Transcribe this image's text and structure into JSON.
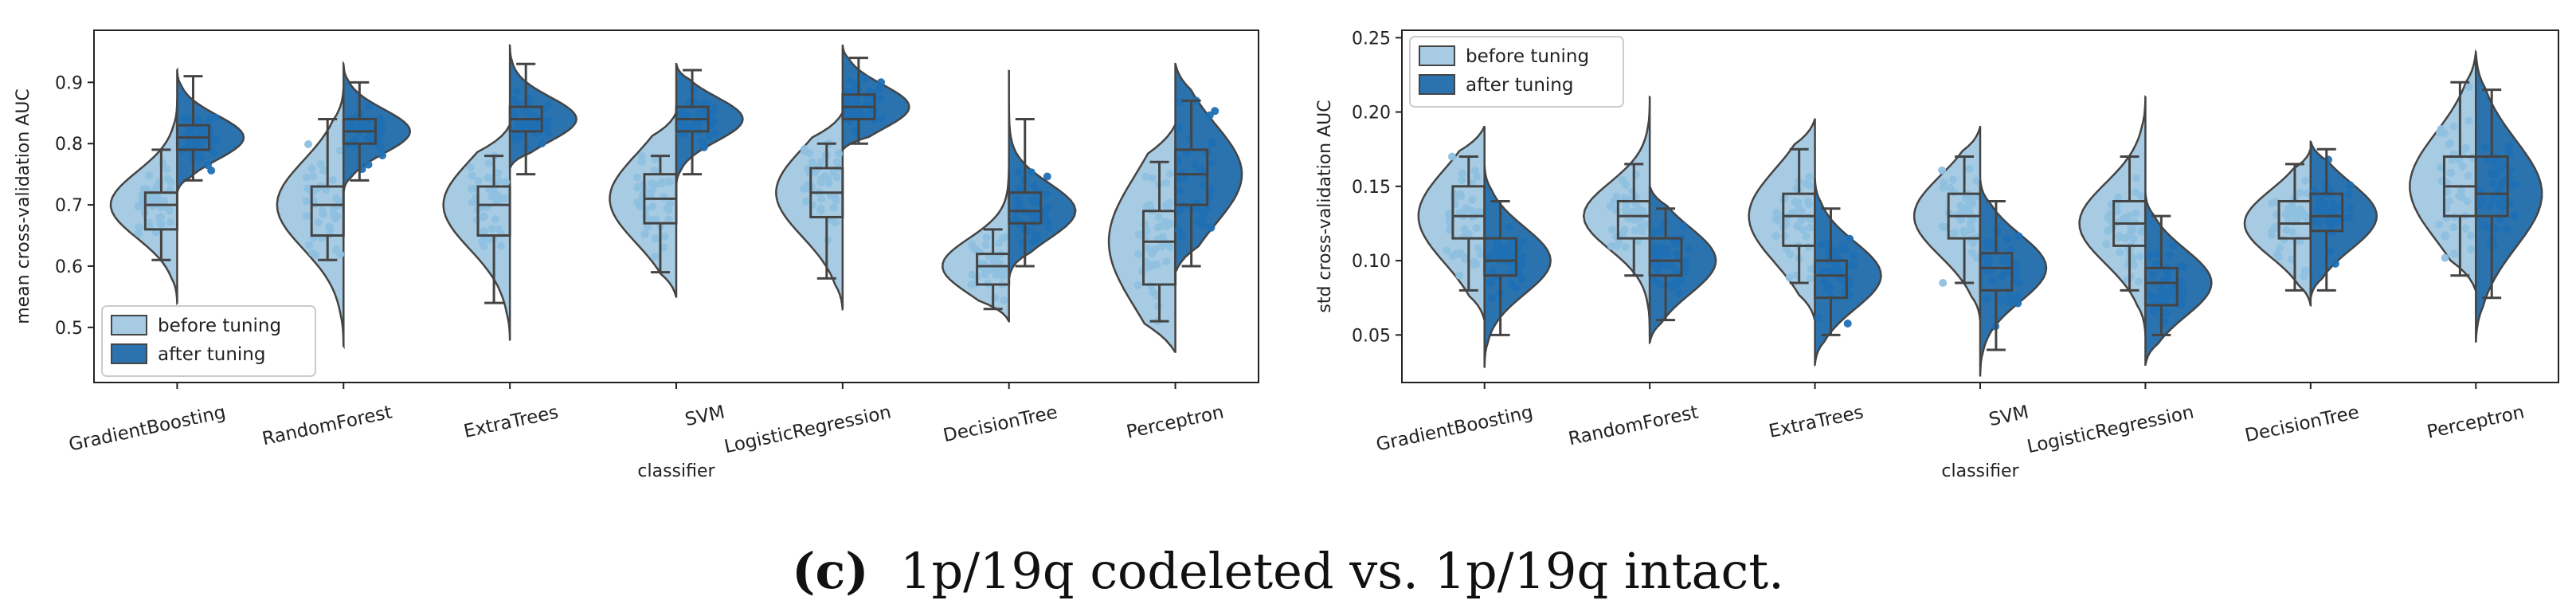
{
  "colors": {
    "before": "#a6cbe3",
    "after": "#2a73ae",
    "before_dot": "#8fc0df",
    "after_dot": "#1f6fb4",
    "line": "#444444"
  },
  "chart_data": [
    {
      "type": "split-violin",
      "xlabel": "classifier",
      "ylabel": "mean cross-validation AUC",
      "ylim": [
        0.41,
        0.985
      ],
      "yticks": [
        "0.5",
        "0.6",
        "0.7",
        "0.8",
        "0.9"
      ],
      "ytick_values": [
        0.5,
        0.6,
        0.7,
        0.8,
        0.9
      ],
      "legend": {
        "position": "lower-left",
        "entries": [
          "before tuning",
          "after tuning"
        ]
      },
      "categories": [
        "GradientBoosting",
        "RandomForest",
        "ExtraTrees",
        "SVM",
        "LogisticRegression",
        "DecisionTree",
        "Perceptron"
      ],
      "series": [
        {
          "name": "before tuning",
          "values": [
            {
              "min": 0.54,
              "q1": 0.66,
              "median": 0.7,
              "q3": 0.72,
              "max": 0.87,
              "whislo": 0.61,
              "whishi": 0.79
            },
            {
              "min": 0.47,
              "q1": 0.65,
              "median": 0.7,
              "q3": 0.73,
              "max": 0.89,
              "whislo": 0.61,
              "whishi": 0.84
            },
            {
              "min": 0.48,
              "q1": 0.65,
              "median": 0.7,
              "q3": 0.73,
              "max": 0.83,
              "whislo": 0.54,
              "whishi": 0.78
            },
            {
              "min": 0.55,
              "q1": 0.67,
              "median": 0.71,
              "q3": 0.75,
              "max": 0.85,
              "whislo": 0.59,
              "whishi": 0.78
            },
            {
              "min": 0.53,
              "q1": 0.68,
              "median": 0.72,
              "q3": 0.76,
              "max": 0.85,
              "whislo": 0.58,
              "whishi": 0.8
            },
            {
              "min": 0.51,
              "q1": 0.57,
              "median": 0.6,
              "q3": 0.62,
              "max": 0.78,
              "whislo": 0.53,
              "whishi": 0.66
            },
            {
              "min": 0.46,
              "q1": 0.57,
              "median": 0.64,
              "q3": 0.69,
              "max": 0.83,
              "whislo": 0.51,
              "whishi": 0.77
            }
          ]
        },
        {
          "name": "after tuning",
          "values": [
            {
              "min": 0.72,
              "q1": 0.79,
              "median": 0.81,
              "q3": 0.83,
              "max": 0.92,
              "whislo": 0.74,
              "whishi": 0.91
            },
            {
              "min": 0.72,
              "q1": 0.8,
              "median": 0.82,
              "q3": 0.84,
              "max": 0.93,
              "whislo": 0.74,
              "whishi": 0.9
            },
            {
              "min": 0.76,
              "q1": 0.82,
              "median": 0.84,
              "q3": 0.86,
              "max": 0.96,
              "whislo": 0.75,
              "whishi": 0.93
            },
            {
              "min": 0.73,
              "q1": 0.82,
              "median": 0.84,
              "q3": 0.86,
              "max": 0.93,
              "whislo": 0.75,
              "whishi": 0.92
            },
            {
              "min": 0.79,
              "q1": 0.84,
              "median": 0.86,
              "q3": 0.88,
              "max": 0.96,
              "whislo": 0.8,
              "whishi": 0.94
            },
            {
              "min": 0.58,
              "q1": 0.67,
              "median": 0.69,
              "q3": 0.72,
              "max": 0.92,
              "whislo": 0.6,
              "whishi": 0.84
            },
            {
              "min": 0.59,
              "q1": 0.7,
              "median": 0.75,
              "q3": 0.79,
              "max": 0.93,
              "whislo": 0.6,
              "whishi": 0.87
            }
          ]
        }
      ]
    },
    {
      "type": "split-violin",
      "xlabel": "classifier",
      "ylabel": "std cross-validation AUC",
      "ylim": [
        0.018,
        0.255
      ],
      "yticks": [
        "0.05",
        "0.10",
        "0.15",
        "0.20",
        "0.25"
      ],
      "ytick_values": [
        0.05,
        0.1,
        0.15,
        0.2,
        0.25
      ],
      "legend": {
        "position": "top-left",
        "entries": [
          "before tuning",
          "after tuning"
        ]
      },
      "categories": [
        "GradientBoosting",
        "RandomForest",
        "ExtraTrees",
        "SVM",
        "LogisticRegression",
        "DecisionTree",
        "Perceptron"
      ],
      "series": [
        {
          "name": "before tuning",
          "values": [
            {
              "min": 0.06,
              "q1": 0.115,
              "median": 0.13,
              "q3": 0.15,
              "max": 0.19,
              "whislo": 0.08,
              "whishi": 0.17
            },
            {
              "min": 0.05,
              "q1": 0.115,
              "median": 0.13,
              "q3": 0.14,
              "max": 0.21,
              "whislo": 0.09,
              "whishi": 0.165
            },
            {
              "min": 0.06,
              "q1": 0.11,
              "median": 0.13,
              "q3": 0.145,
              "max": 0.195,
              "whislo": 0.085,
              "whishi": 0.175
            },
            {
              "min": 0.06,
              "q1": 0.115,
              "median": 0.13,
              "q3": 0.145,
              "max": 0.19,
              "whislo": 0.085,
              "whishi": 0.17
            },
            {
              "min": 0.05,
              "q1": 0.11,
              "median": 0.125,
              "q3": 0.14,
              "max": 0.21,
              "whislo": 0.08,
              "whishi": 0.17
            },
            {
              "min": 0.07,
              "q1": 0.115,
              "median": 0.125,
              "q3": 0.14,
              "max": 0.175,
              "whislo": 0.08,
              "whishi": 0.165
            },
            {
              "min": 0.08,
              "q1": 0.13,
              "median": 0.15,
              "q3": 0.17,
              "max": 0.24,
              "whislo": 0.09,
              "whishi": 0.22
            }
          ]
        },
        {
          "name": "after tuning",
          "values": [
            {
              "min": 0.028,
              "q1": 0.09,
              "median": 0.1,
              "q3": 0.115,
              "max": 0.165,
              "whislo": 0.05,
              "whishi": 0.14
            },
            {
              "min": 0.045,
              "q1": 0.09,
              "median": 0.1,
              "q3": 0.115,
              "max": 0.15,
              "whislo": 0.06,
              "whishi": 0.135
            },
            {
              "min": 0.03,
              "q1": 0.075,
              "median": 0.09,
              "q3": 0.1,
              "max": 0.155,
              "whislo": 0.05,
              "whishi": 0.135
            },
            {
              "min": 0.022,
              "q1": 0.08,
              "median": 0.095,
              "q3": 0.105,
              "max": 0.155,
              "whislo": 0.04,
              "whishi": 0.14
            },
            {
              "min": 0.03,
              "q1": 0.07,
              "median": 0.085,
              "q3": 0.095,
              "max": 0.145,
              "whislo": 0.05,
              "whishi": 0.13
            },
            {
              "min": 0.075,
              "q1": 0.12,
              "median": 0.13,
              "q3": 0.145,
              "max": 0.18,
              "whislo": 0.08,
              "whishi": 0.175
            },
            {
              "min": 0.045,
              "q1": 0.13,
              "median": 0.145,
              "q3": 0.17,
              "max": 0.24,
              "whislo": 0.075,
              "whishi": 0.215
            }
          ]
        }
      ]
    }
  ],
  "caption": {
    "label": "(c)",
    "text": "1p/19q codeleted vs. 1p/19q intact."
  }
}
